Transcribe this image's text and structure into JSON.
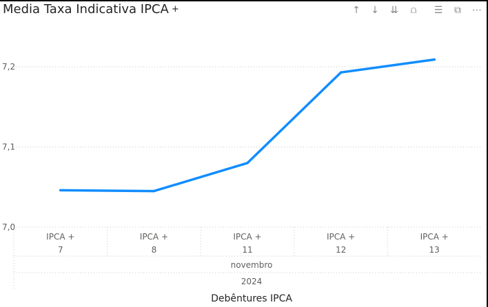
{
  "visual": {
    "title": "Media Taxa Indicativa IPCA",
    "title_icon": "+",
    "toolbar": [
      {
        "name": "drill-up-icon",
        "glyph": "↑"
      },
      {
        "name": "drill-down-icon",
        "glyph": "↓"
      },
      {
        "name": "expand-next-level-icon",
        "glyph": "⇊"
      },
      {
        "name": "expand-hierarchy-icon",
        "glyph": "⩍"
      },
      {
        "name": "filter-icon",
        "glyph": "☰"
      },
      {
        "name": "focus-mode-icon",
        "glyph": "⧉"
      },
      {
        "name": "more-options-icon",
        "glyph": "⋯"
      }
    ]
  },
  "chart_data": {
    "type": "line",
    "categories": [
      {
        "line1": "IPCA +",
        "line2": "7"
      },
      {
        "line1": "IPCA +",
        "line2": "8"
      },
      {
        "line1": "IPCA +",
        "line2": "11"
      },
      {
        "line1": "IPCA +",
        "line2": "12"
      },
      {
        "line1": "IPCA +",
        "line2": "13"
      }
    ],
    "values": [
      7.046,
      7.045,
      7.08,
      7.193,
      7.209
    ],
    "month_label": "novembro",
    "year_label": "2024",
    "xlabel": "Debêntures IPCA",
    "ylabel": "",
    "ylim": [
      7.0,
      7.2
    ],
    "yticks": [
      {
        "value": 7.0,
        "label": "7,0"
      },
      {
        "value": 7.1,
        "label": "7,1"
      },
      {
        "value": 7.2,
        "label": "7,2"
      }
    ],
    "line_color": "#118DFF",
    "grid": true
  }
}
